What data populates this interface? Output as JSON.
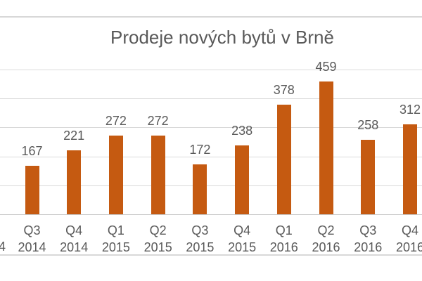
{
  "chart_data": {
    "type": "bar",
    "title": "Prodeje nových bytů v Brně",
    "categories": [
      "Q3 2014",
      "Q4 2014",
      "Q1 2015",
      "Q2 2015",
      "Q3 2015",
      "Q4 2015",
      "Q1 2016",
      "Q2 2016",
      "Q3 2016",
      "Q4 2016"
    ],
    "category_lines": [
      [
        "Q3",
        "2014"
      ],
      [
        "Q4",
        "2014"
      ],
      [
        "Q1",
        "2015"
      ],
      [
        "Q2",
        "2015"
      ],
      [
        "Q3",
        "2015"
      ],
      [
        "Q4",
        "2015"
      ],
      [
        "Q1",
        "2016"
      ],
      [
        "Q2",
        "2016"
      ],
      [
        "Q3",
        "2016"
      ],
      [
        "Q4",
        "2016"
      ]
    ],
    "values": [
      167,
      221,
      272,
      272,
      172,
      238,
      378,
      459,
      258,
      312
    ],
    "data_labels_visible": true,
    "xlabel": "",
    "ylabel": "",
    "ylim": [
      0,
      550
    ],
    "gridline_values": [
      100,
      200,
      300,
      400,
      500
    ],
    "y_tick_labels_visible": false,
    "legend": "none",
    "clipped_left_label_fragment": "4"
  },
  "colors": {
    "bar": "#C55A11",
    "text": "#595959",
    "gridline": "#D9D9D9",
    "axis_line": "#C9C9C9",
    "chart_border": "#D8D8D8"
  }
}
